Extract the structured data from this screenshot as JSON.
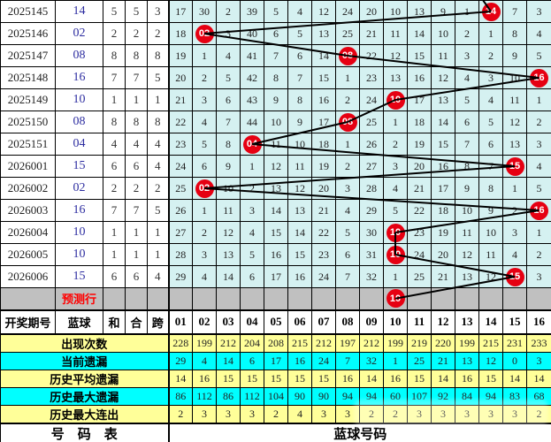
{
  "colors": {
    "grid_cell_bg": "#d5f1f1",
    "stat_yellow": "#ffff99",
    "stat_cyan": "#00ffff",
    "prediction_gray": "#c0c0c0",
    "ball_circle_red": "#e60012",
    "blue_number_text": "#2d2da0",
    "prediction_label_red": "#ff0000"
  },
  "left_table": {
    "header": [
      "开奖期号",
      "蓝球",
      "和",
      "合",
      "跨"
    ],
    "prediction_label": "预测行",
    "rows": [
      {
        "period": "2025145",
        "blue": "14",
        "sum": "5",
        "he": "5",
        "span": "3"
      },
      {
        "period": "2025146",
        "blue": "02",
        "sum": "2",
        "he": "2",
        "span": "2"
      },
      {
        "period": "2025147",
        "blue": "08",
        "sum": "8",
        "he": "8",
        "span": "8"
      },
      {
        "period": "2025148",
        "blue": "16",
        "sum": "7",
        "he": "7",
        "span": "5"
      },
      {
        "period": "2025149",
        "blue": "10",
        "sum": "1",
        "he": "1",
        "span": "1"
      },
      {
        "period": "2025150",
        "blue": "08",
        "sum": "8",
        "he": "8",
        "span": "8"
      },
      {
        "period": "2025151",
        "blue": "04",
        "sum": "4",
        "he": "4",
        "span": "4"
      },
      {
        "period": "2026001",
        "blue": "15",
        "sum": "6",
        "he": "6",
        "span": "4"
      },
      {
        "period": "2026002",
        "blue": "02",
        "sum": "2",
        "he": "2",
        "span": "2"
      },
      {
        "period": "2026003",
        "blue": "16",
        "sum": "7",
        "he": "7",
        "span": "5"
      },
      {
        "period": "2026004",
        "blue": "10",
        "sum": "1",
        "he": "1",
        "span": "1"
      },
      {
        "period": "2026005",
        "blue": "10",
        "sum": "1",
        "he": "1",
        "span": "1"
      },
      {
        "period": "2026006",
        "blue": "15",
        "sum": "6",
        "he": "6",
        "span": "4"
      }
    ]
  },
  "grid": {
    "columns": [
      "01",
      "02",
      "03",
      "04",
      "05",
      "06",
      "07",
      "08",
      "09",
      "10",
      "11",
      "12",
      "13",
      "14",
      "15",
      "16"
    ],
    "rows": [
      {
        "blue": 14,
        "cells": [
          17,
          30,
          2,
          39,
          5,
          4,
          12,
          24,
          20,
          10,
          13,
          9,
          1,
          null,
          7,
          3
        ]
      },
      {
        "blue": 2,
        "cells": [
          18,
          null,
          3,
          40,
          6,
          5,
          13,
          25,
          21,
          11,
          14,
          10,
          2,
          1,
          8,
          4
        ]
      },
      {
        "blue": 8,
        "cells": [
          19,
          1,
          4,
          41,
          7,
          6,
          14,
          null,
          22,
          12,
          15,
          11,
          3,
          2,
          9,
          5
        ]
      },
      {
        "blue": 16,
        "cells": [
          20,
          2,
          5,
          42,
          8,
          7,
          15,
          1,
          23,
          13,
          16,
          12,
          4,
          3,
          10,
          null
        ]
      },
      {
        "blue": 10,
        "cells": [
          21,
          3,
          6,
          43,
          9,
          8,
          16,
          2,
          24,
          null,
          17,
          13,
          5,
          4,
          11,
          1
        ]
      },
      {
        "blue": 8,
        "cells": [
          22,
          4,
          7,
          44,
          10,
          9,
          17,
          null,
          25,
          1,
          18,
          14,
          6,
          5,
          12,
          2
        ]
      },
      {
        "blue": 4,
        "cells": [
          23,
          5,
          8,
          null,
          11,
          10,
          18,
          1,
          26,
          2,
          19,
          15,
          7,
          6,
          13,
          3
        ]
      },
      {
        "blue": 15,
        "cells": [
          24,
          6,
          9,
          1,
          12,
          11,
          19,
          2,
          27,
          3,
          20,
          16,
          8,
          7,
          null,
          4
        ]
      },
      {
        "blue": 2,
        "cells": [
          25,
          null,
          10,
          2,
          13,
          12,
          20,
          3,
          28,
          4,
          21,
          17,
          9,
          8,
          1,
          5
        ]
      },
      {
        "blue": 16,
        "cells": [
          26,
          1,
          11,
          3,
          14,
          13,
          21,
          4,
          29,
          5,
          22,
          18,
          10,
          9,
          2,
          null
        ]
      },
      {
        "blue": 10,
        "cells": [
          27,
          2,
          12,
          4,
          15,
          14,
          22,
          5,
          30,
          null,
          23,
          19,
          11,
          10,
          3,
          1
        ]
      },
      {
        "blue": 10,
        "cells": [
          28,
          3,
          13,
          5,
          16,
          15,
          23,
          6,
          31,
          null,
          24,
          20,
          12,
          11,
          4,
          2
        ]
      },
      {
        "blue": 15,
        "cells": [
          29,
          4,
          14,
          6,
          17,
          16,
          24,
          7,
          32,
          1,
          25,
          21,
          13,
          12,
          null,
          3
        ]
      }
    ],
    "prediction_blue": 10
  },
  "stats": {
    "rows": [
      {
        "label": "出现次数",
        "bg": "yellow",
        "values": [
          228,
          199,
          212,
          204,
          208,
          215,
          212,
          197,
          212,
          199,
          219,
          220,
          199,
          215,
          231,
          233
        ]
      },
      {
        "label": "当前遗漏",
        "bg": "cyan",
        "values": [
          29,
          4,
          14,
          6,
          17,
          16,
          24,
          7,
          32,
          1,
          25,
          21,
          13,
          12,
          0,
          3
        ]
      },
      {
        "label": "历史平均遗漏",
        "bg": "yellow",
        "values": [
          14,
          16,
          15,
          15,
          15,
          15,
          15,
          16,
          14,
          16,
          15,
          14,
          16,
          15,
          14,
          14
        ]
      },
      {
        "label": "历史最大遗漏",
        "bg": "cyan",
        "values": [
          86,
          112,
          86,
          112,
          104,
          90,
          90,
          94,
          94,
          60,
          107,
          92,
          84,
          94,
          83,
          68
        ]
      },
      {
        "label": "历史最大连出",
        "bg": "yellow",
        "values": [
          2,
          3,
          3,
          3,
          2,
          4,
          3,
          3,
          2,
          2,
          3,
          3,
          3,
          3,
          3,
          2
        ]
      }
    ]
  },
  "footer": {
    "left": "号　码　表",
    "right": "蓝球号码"
  },
  "chart_data": {
    "type": "line",
    "x": [
      "2025145",
      "2025146",
      "2025147",
      "2025148",
      "2025149",
      "2025150",
      "2025151",
      "2026001",
      "2026002",
      "2026003",
      "2026004",
      "2026005",
      "2026006",
      "预测行"
    ],
    "series": [
      {
        "name": "蓝球",
        "values": [
          14,
          2,
          8,
          16,
          10,
          8,
          4,
          15,
          2,
          16,
          10,
          10,
          15,
          10
        ]
      }
    ],
    "ylim": [
      1,
      16
    ],
    "grid": true,
    "legend_position": "none",
    "notes_columns": [
      "01",
      "02",
      "03",
      "04",
      "05",
      "06",
      "07",
      "08",
      "09",
      "10",
      "11",
      "12",
      "13",
      "14",
      "15",
      "16"
    ]
  }
}
